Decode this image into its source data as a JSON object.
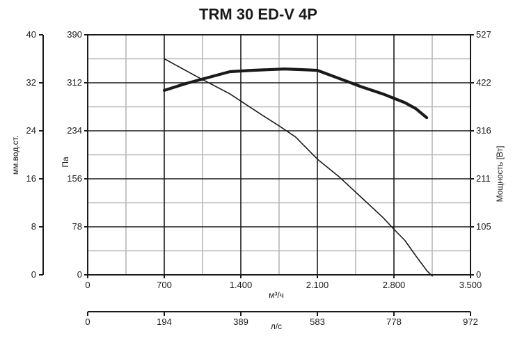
{
  "chart_data": {
    "type": "line",
    "title": "TRM 30 ED-V 4P",
    "x_axis": {
      "label": "м³/ч",
      "range": [
        0,
        3500
      ],
      "ticks": [
        0,
        700,
        1400,
        2100,
        2800,
        3500
      ],
      "tick_labels": [
        "0",
        "700",
        "1.400",
        "2.100",
        "2.800",
        "3.500"
      ]
    },
    "x_axis_secondary": {
      "label": "л/с",
      "tick_labels": [
        "0",
        "194",
        "389",
        "583",
        "778",
        "972"
      ]
    },
    "y_axis_pressure": {
      "label": "Па",
      "range": [
        0,
        390
      ],
      "ticks": [
        0,
        78,
        156,
        234,
        312,
        390
      ],
      "tick_labels": [
        "0",
        "78",
        "156",
        "234",
        "312",
        "390"
      ]
    },
    "y_axis_water": {
      "label": "мм.вод.ст.",
      "tick_labels": [
        "0",
        "8",
        "16",
        "24",
        "32",
        "40"
      ]
    },
    "y_axis_power": {
      "label": "Мощность [Вт]",
      "range": [
        0,
        527
      ],
      "tick_labels": [
        "0",
        "105",
        "211",
        "316",
        "422",
        "527"
      ]
    },
    "grid": true,
    "series": [
      {
        "role": "pressure",
        "axis": "pressure",
        "style": "thin",
        "x": [
          700,
          1000,
          1300,
          1600,
          1750,
          1900,
          2100,
          2300,
          2500,
          2700,
          2800,
          2900,
          3000,
          3100,
          3150
        ],
        "y": [
          351,
          322,
          294,
          259,
          242,
          224,
          188,
          159,
          126,
          93,
          74,
          56,
          31,
          7,
          -2
        ]
      },
      {
        "role": "power",
        "axis": "power",
        "style": "thick",
        "x": [
          700,
          900,
          1100,
          1300,
          1500,
          1700,
          1800,
          2000,
          2100,
          2300,
          2500,
          2700,
          2900,
          3000,
          3100
        ],
        "y": [
          405,
          420,
          433,
          446,
          449,
          451,
          452,
          450,
          449,
          431,
          413,
          397,
          378,
          365,
          345
        ]
      }
    ],
    "colors": {
      "ink": "#1a1a1a",
      "grid_major": "#1a1a1a",
      "grid_minor": "#b8b8b8",
      "background": "#ffffff"
    }
  }
}
